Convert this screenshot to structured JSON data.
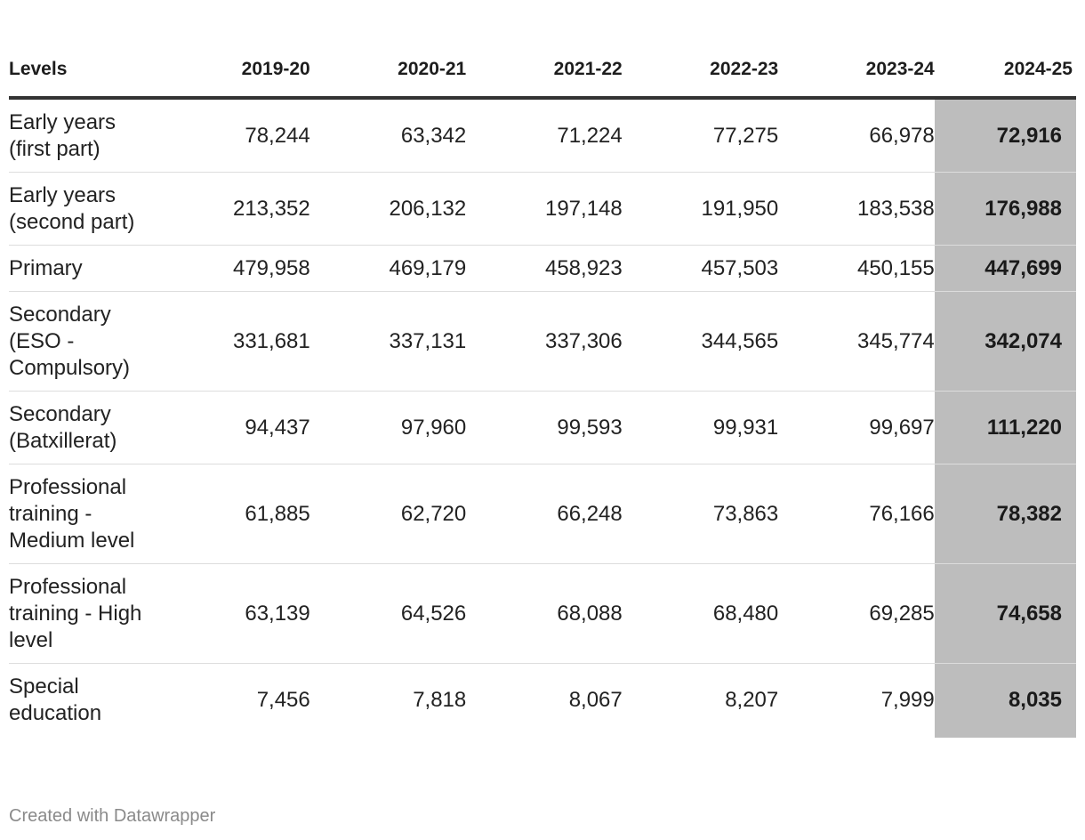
{
  "chart_data": {
    "type": "table",
    "columns": [
      "Levels",
      "2019-20",
      "2020-21",
      "2021-22",
      "2022-23",
      "2023-24",
      "2024-25"
    ],
    "highlight_column": "2024-25",
    "rows": [
      {
        "level": "Early years (first part)",
        "values": [
          "78,244",
          "63,342",
          "71,224",
          "77,275",
          "66,978",
          "72,916"
        ]
      },
      {
        "level": "Early years (second part)",
        "values": [
          "213,352",
          "206,132",
          "197,148",
          "191,950",
          "183,538",
          "176,988"
        ]
      },
      {
        "level": "Primary",
        "values": [
          "479,958",
          "469,179",
          "458,923",
          "457,503",
          "450,155",
          "447,699"
        ]
      },
      {
        "level": "Secondary (ESO - Compulsory)",
        "values": [
          "331,681",
          "337,131",
          "337,306",
          "344,565",
          "345,774",
          "342,074"
        ]
      },
      {
        "level": "Secondary (Batxillerat)",
        "values": [
          "94,437",
          "97,960",
          "99,593",
          "99,931",
          "99,697",
          "111,220"
        ]
      },
      {
        "level": "Professional training - Medium level",
        "values": [
          "61,885",
          "62,720",
          "66,248",
          "73,863",
          "76,166",
          "78,382"
        ]
      },
      {
        "level": "Professional training - High level",
        "values": [
          "63,139",
          "64,526",
          "68,088",
          "68,480",
          "69,285",
          "74,658"
        ]
      },
      {
        "level": "Special education",
        "values": [
          "7,456",
          "7,818",
          "8,067",
          "8,207",
          "7,999",
          "8,035"
        ]
      }
    ],
    "highlight_color": "#bdbdbd"
  },
  "footer": {
    "credit": "Created with Datawrapper"
  }
}
